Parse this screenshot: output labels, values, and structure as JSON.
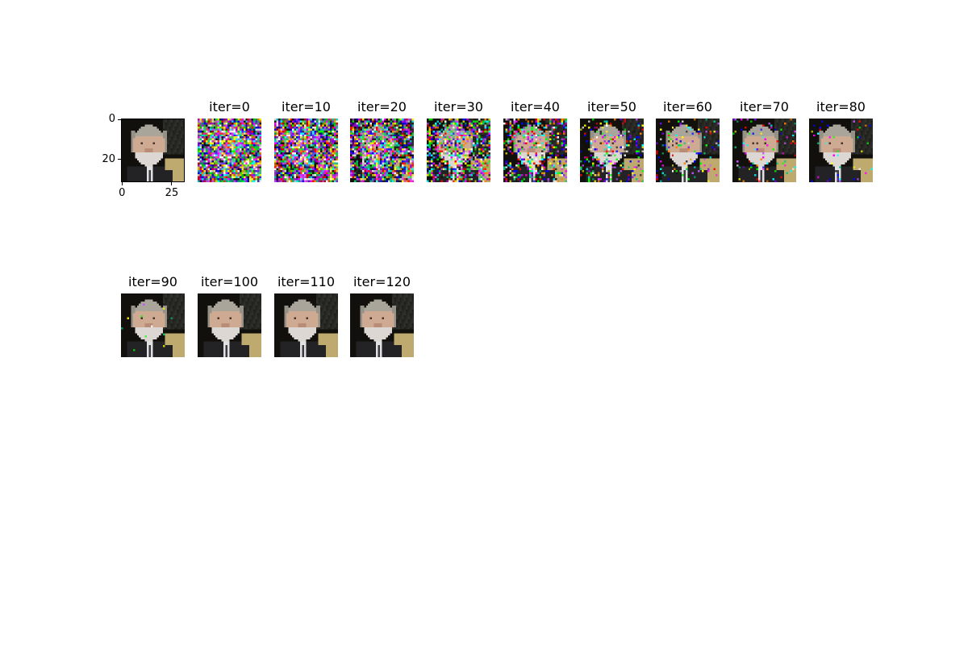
{
  "chart_data": {
    "type": "image-grid",
    "description_rows": 2,
    "panels": [
      {
        "id": "original",
        "title": "",
        "noise": 0.0,
        "has_axes": true
      },
      {
        "id": "iter0",
        "title": "iter=0",
        "noise": 1.0
      },
      {
        "id": "iter10",
        "title": "iter=10",
        "noise": 0.95
      },
      {
        "id": "iter20",
        "title": "iter=20",
        "noise": 0.8
      },
      {
        "id": "iter30",
        "title": "iter=30",
        "noise": 0.55
      },
      {
        "id": "iter40",
        "title": "iter=40",
        "noise": 0.38
      },
      {
        "id": "iter50",
        "title": "iter=50",
        "noise": 0.22
      },
      {
        "id": "iter60",
        "title": "iter=60",
        "noise": 0.14
      },
      {
        "id": "iter70",
        "title": "iter=70",
        "noise": 0.08
      },
      {
        "id": "iter80",
        "title": "iter=80",
        "noise": 0.04
      },
      {
        "id": "iter90",
        "title": "iter=90",
        "noise": 0.01
      },
      {
        "id": "iter100",
        "title": "iter=100",
        "noise": 0.0
      },
      {
        "id": "iter110",
        "title": "iter=110",
        "noise": 0.0
      },
      {
        "id": "iter120",
        "title": "iter=120",
        "noise": 0.0
      }
    ],
    "original_axes": {
      "x_ticks": [
        "0",
        "25"
      ],
      "y_ticks": [
        "0",
        "20"
      ],
      "xlim": [
        0,
        32
      ],
      "ylim": [
        32,
        0
      ]
    },
    "image_resolution": [
      32,
      32
    ]
  }
}
